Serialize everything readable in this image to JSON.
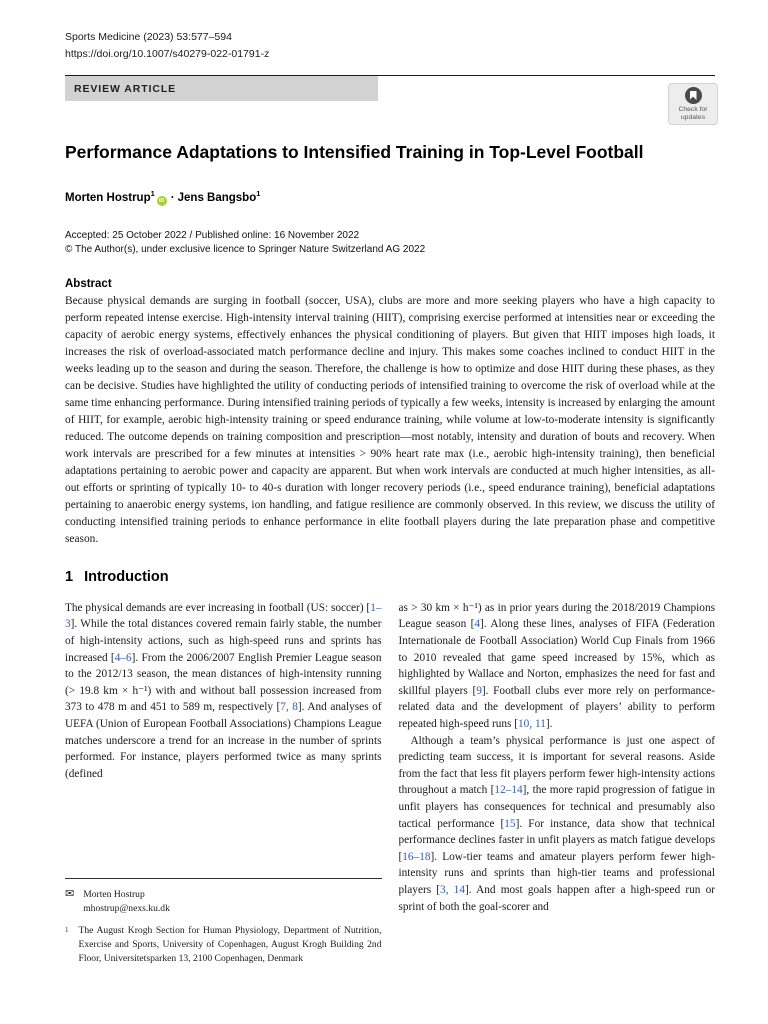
{
  "colors": {
    "citation_link": "#2f5bbf",
    "orcid_green": "#a6ce39",
    "banner_bg": "#d2d2d2"
  },
  "header": {
    "journal_ref": "Sports Medicine (2023) 53:577–594",
    "doi": "https://doi.org/10.1007/s40279-022-01791-z",
    "article_type": "REVIEW ARTICLE",
    "update_badge": {
      "line1": "Check for",
      "line2": "updates"
    }
  },
  "article": {
    "title": "Performance Adaptations to Intensified Training in Top-Level Football",
    "author_separator": "·",
    "authors": [
      {
        "name": "Morten Hostrup",
        "affiliation_mark": "1",
        "has_orcid": true
      },
      {
        "name": "Jens Bangsbo",
        "affiliation_mark": "1",
        "has_orcid": false
      }
    ],
    "orcid_label": "iD",
    "accepted_line": "Accepted: 25 October 2022 / Published online: 16 November 2022",
    "copyright_line": "© The Author(s), under exclusive licence to Springer Nature Switzerland AG 2022"
  },
  "abstract": {
    "heading": "Abstract",
    "text": "Because physical demands are surging in football (soccer, USA), clubs are more and more seeking players who have a high capacity to perform repeated intense exercise. High-intensity interval training (HIIT), comprising exercise performed at intensities near or exceeding the capacity of aerobic energy systems, effectively enhances the physical conditioning of players. But given that HIIT imposes high loads, it increases the risk of overload-associated match performance decline and injury. This makes some coaches inclined to conduct HIIT in the weeks leading up to the season and during the season. Therefore, the challenge is how to optimize and dose HIIT during these phases, as they can be decisive. Studies have highlighted the utility of conducting periods of intensified training to overcome the risk of overload while at the same time enhancing performance. During intensified training periods of typically a few weeks, intensity is increased by enlarging the amount of HIIT, for example, aerobic high-intensity training or speed endurance training, while volume at low-to-moderate intensity is significantly reduced. The outcome depends on training composition and prescription—most notably, intensity and duration of bouts and recovery. When work intervals are prescribed for a few minutes at intensities > 90% heart rate max (i.e., aerobic high-intensity training), then beneficial adaptations pertaining to aerobic power and capacity are apparent. But when work intervals are conducted at much higher intensities, as all-out efforts or sprinting of typically 10- to 40-s duration with longer recovery periods (i.e., speed endurance training), beneficial adaptations pertaining to anaerobic energy systems, ion handling, and fatigue resilience are commonly observed. In this review, we discuss the utility of conducting intensified training periods to enhance performance in elite football players during the late preparation phase and competitive season."
  },
  "introduction": {
    "number": "1",
    "heading": "Introduction",
    "left_column_paragraphs": [
      {
        "segments": [
          {
            "t": "The physical demands are ever increasing in football (US: soccer) ["
          },
          {
            "c": "1–3"
          },
          {
            "t": "]. While the total distances covered remain fairly stable, the number of high-intensity actions, such as high-speed runs and sprints has increased ["
          },
          {
            "c": "4–6"
          },
          {
            "t": "]. From the 2006/2007 English Premier League season to the 2012/13 season, the mean distances of high-intensity running (> 19.8 km × h⁻¹) with and without ball possession increased from 373 to 478 m and 451 to 589 m, respectively ["
          },
          {
            "c": "7, 8"
          },
          {
            "t": "]. And analyses of UEFA (Union of European Football Associations) Champions League matches underscore a trend for an increase in the number of sprints performed. For instance, players performed twice as many sprints (defined"
          }
        ]
      }
    ],
    "right_column_paragraphs": [
      {
        "segments": [
          {
            "t": "as > 30 km × h⁻¹) as in prior years during the 2018/2019 Champions League season ["
          },
          {
            "c": "4"
          },
          {
            "t": "]. Along these lines, analyses of FIFA (Federation Internationale de Football Association) World Cup Finals from 1966 to 2010 revealed that game speed increased by 15%, which as highlighted by Wallace and Norton, emphasizes the need for fast and skillful players ["
          },
          {
            "c": "9"
          },
          {
            "t": "]. Football clubs ever more rely on performance-related data and the development of players’ ability to perform repeated high-speed runs ["
          },
          {
            "c": "10, 11"
          },
          {
            "t": "]."
          }
        ]
      },
      {
        "indent": true,
        "segments": [
          {
            "t": "Although a team’s physical performance is just one aspect of predicting team success, it is important for several reasons. Aside from the fact that less fit players perform fewer high-intensity actions throughout a match ["
          },
          {
            "c": "12–14"
          },
          {
            "t": "], the more rapid progression of fatigue in unfit players has consequences for technical and presumably also tactical performance ["
          },
          {
            "c": "15"
          },
          {
            "t": "]. For instance, data show that technical performance declines faster in unfit players as match fatigue develops ["
          },
          {
            "c": "16–18"
          },
          {
            "t": "]. Low-tier teams and amateur players perform fewer high-intensity runs and sprints than high-tier teams and professional players ["
          },
          {
            "c": "3, 14"
          },
          {
            "t": "]. And most goals happen after a high-speed run or sprint of both the goal-scorer and"
          }
        ]
      }
    ]
  },
  "footnotes": {
    "correspondence": {
      "name": "Morten Hostrup",
      "email": "mhostrup@nexs.ku.dk"
    },
    "affiliations": [
      {
        "mark": "1",
        "text": "The August Krogh Section for Human Physiology, Department of Nutrition, Exercise and Sports, University of Copenhagen, August Krogh Building 2nd Floor, Universitetsparken 13, 2100 Copenhagen, Denmark"
      }
    ]
  }
}
